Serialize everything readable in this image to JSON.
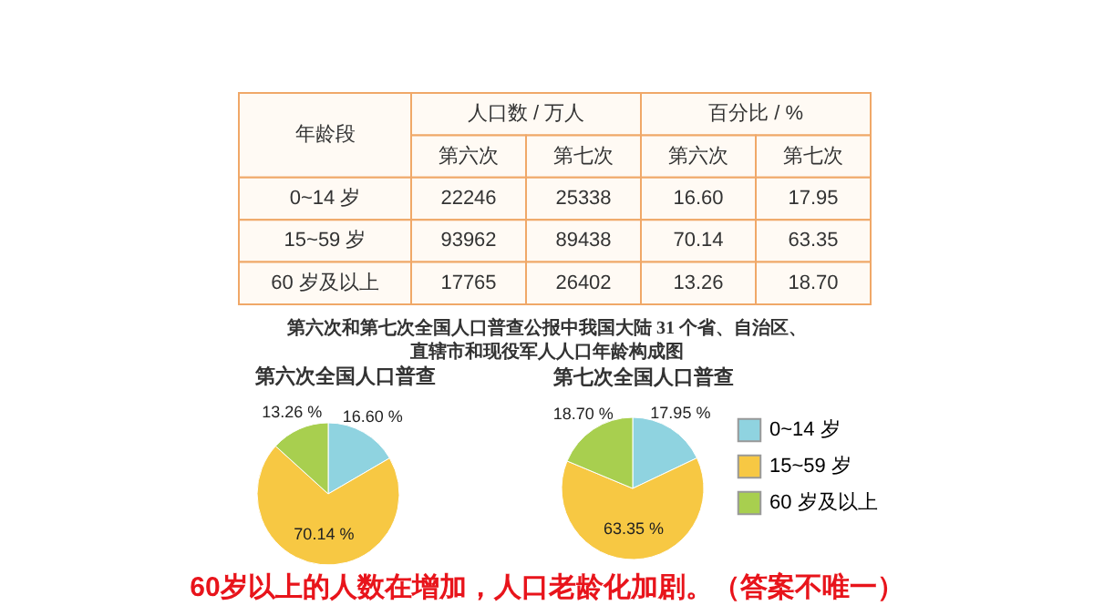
{
  "chart_data": [
    {
      "type": "other",
      "annotations": [
        "人口数 / 万人",
        "百分比 / %"
      ],
      "ylabel": "年龄段",
      "categories": [
        "0~14 岁",
        "15~59 岁",
        "60 岁及以上"
      ],
      "data_labels": true,
      "series": [
        {
          "name": "第六次",
          "values": [
            22246,
            93962,
            17765
          ]
        },
        {
          "name": "第七次",
          "values": [
            25338,
            89438,
            26402
          ]
        },
        {
          "name": "第六次",
          "values": [
            16.6,
            70.14,
            13.26
          ],
          "value_labels": [
            "16.60",
            "70.14",
            "13.26"
          ]
        },
        {
          "name": "第七次",
          "values": [
            17.95,
            63.35,
            18.7
          ],
          "value_labels": [
            "17.95",
            "63.35",
            "18.70"
          ]
        }
      ]
    },
    {
      "type": "pie",
      "title": "第六次全国人口普查",
      "annotations": [
        "第六次和第七次全国人口普查公报中我国大陆 31 个省、自治区、",
        "直辖市和现役军人人口年龄构成图"
      ],
      "categories": [
        null,
        null,
        null
      ],
      "values": [
        16.6,
        70.14,
        13.26
      ],
      "value_labels": [
        "16.60 %",
        "70.14 %",
        "13.26 %"
      ],
      "colors": [
        "#8fd3e0",
        "#f7c843",
        "#a8cf4f"
      ],
      "legend": false
    },
    {
      "type": "pie",
      "title": "第七次全国人口普查",
      "annotations": [
        "60岁以上的人数在增加，人口老龄化加剧。（答案不唯一）"
      ],
      "categories": [
        "0~14 岁",
        "15~59 岁",
        "60 岁及以上"
      ],
      "values": [
        17.95,
        63.35,
        18.7
      ],
      "value_labels": [
        "17.95 %",
        "63.35 %",
        "18.70 %"
      ],
      "colors": [
        "#8fd3e0",
        "#f7c843",
        "#a8cf4f"
      ],
      "legend": "right"
    }
  ]
}
